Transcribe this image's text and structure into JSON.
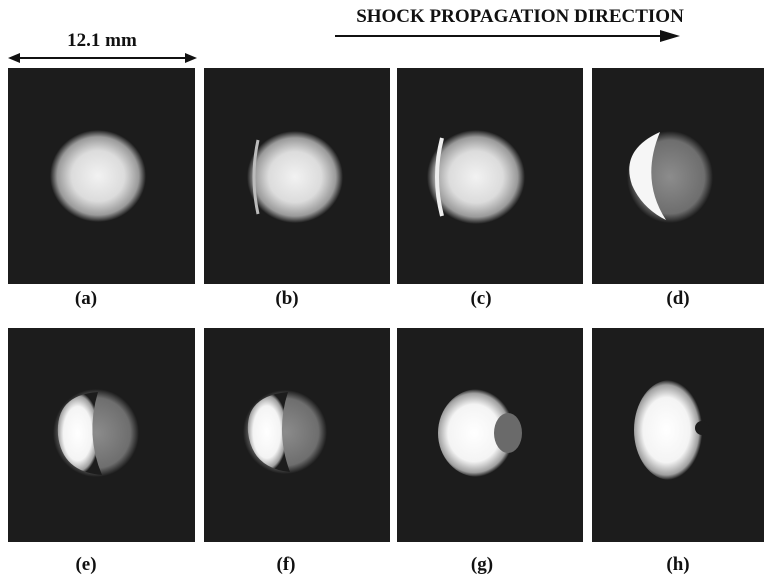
{
  "header": {
    "direction": "SHOCK PROPAGATION DIRECTION",
    "scale": "12.1 mm"
  },
  "panels": [
    {
      "label": "(a)"
    },
    {
      "label": "(b)"
    },
    {
      "label": "(c)"
    },
    {
      "label": "(d)"
    },
    {
      "label": "(e)"
    },
    {
      "label": "(f)"
    },
    {
      "label": "(g)"
    },
    {
      "label": "(h)"
    }
  ]
}
